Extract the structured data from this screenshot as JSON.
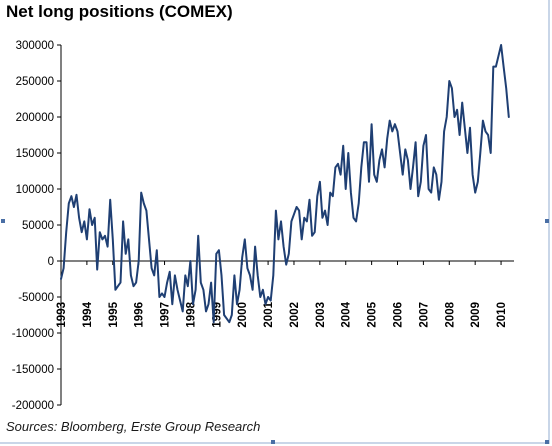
{
  "title": "Net long positions (COMEX)",
  "source": "Sources: Bloomberg, Erste Group Research",
  "colors": {
    "line": "#1f3f73",
    "axis": "#000000"
  },
  "chart_data": {
    "type": "line",
    "title": "Net long positions (COMEX)",
    "xlabel": "",
    "ylabel": "",
    "ylim": [
      -200000,
      300000
    ],
    "yticks": [
      -200000,
      -150000,
      -100000,
      -50000,
      0,
      50000,
      100000,
      150000,
      200000,
      250000,
      300000
    ],
    "ytick_labels": [
      "-200000",
      "-150000",
      "-100000",
      "-50000",
      "0",
      "50000",
      "100000",
      "150000",
      "200000",
      "250000",
      "300000"
    ],
    "xlim": [
      1993.0,
      2010.5
    ],
    "xtick_labels": [
      "1993",
      "1994",
      "1995",
      "1996",
      "1997",
      "1998",
      "1999",
      "2000",
      "2001",
      "2002",
      "2003",
      "2004",
      "2005",
      "2006",
      "2007",
      "2008",
      "2009",
      "2010"
    ],
    "grid": false,
    "legend": "none",
    "series": [
      {
        "x": [
          1993.0,
          1993.1,
          1993.2,
          1993.3,
          1993.4,
          1993.5,
          1993.6,
          1993.7,
          1993.8,
          1993.9,
          1994.0,
          1994.1,
          1994.2,
          1994.3,
          1994.4,
          1994.5,
          1994.6,
          1994.7,
          1994.8,
          1994.9,
          1995.0,
          1995.1,
          1995.2,
          1995.3,
          1995.4,
          1995.5,
          1995.6,
          1995.7,
          1995.8,
          1995.9,
          1996.0,
          1996.1,
          1996.2,
          1996.3,
          1996.4,
          1996.5,
          1996.6,
          1996.7,
          1996.8,
          1996.9,
          1997.0,
          1997.1,
          1997.2,
          1997.3,
          1997.4,
          1997.5,
          1997.6,
          1997.7,
          1997.8,
          1997.9,
          1998.0,
          1998.1,
          1998.2,
          1998.3,
          1998.4,
          1998.5,
          1998.6,
          1998.7,
          1998.8,
          1998.9,
          1999.0,
          1999.1,
          1999.2,
          1999.3,
          1999.4,
          1999.5,
          1999.6,
          1999.7,
          1999.8,
          1999.9,
          2000.0,
          2000.1,
          2000.2,
          2000.3,
          2000.4,
          2000.5,
          2000.6,
          2000.7,
          2000.8,
          2000.9,
          2001.0,
          2001.1,
          2001.2,
          2001.3,
          2001.4,
          2001.5,
          2001.6,
          2001.7,
          2001.8,
          2001.9,
          2002.0,
          2002.1,
          2002.2,
          2002.3,
          2002.4,
          2002.5,
          2002.6,
          2002.7,
          2002.8,
          2002.9,
          2003.0,
          2003.1,
          2003.2,
          2003.3,
          2003.4,
          2003.5,
          2003.6,
          2003.7,
          2003.8,
          2003.9,
          2004.0,
          2004.1,
          2004.2,
          2004.3,
          2004.4,
          2004.5,
          2004.6,
          2004.7,
          2004.8,
          2004.9,
          2005.0,
          2005.1,
          2005.2,
          2005.3,
          2005.4,
          2005.5,
          2005.6,
          2005.7,
          2005.8,
          2005.9,
          2006.0,
          2006.1,
          2006.2,
          2006.3,
          2006.4,
          2006.5,
          2006.6,
          2006.7,
          2006.8,
          2006.9,
          2007.0,
          2007.1,
          2007.2,
          2007.3,
          2007.4,
          2007.5,
          2007.6,
          2007.7,
          2007.8,
          2007.9,
          2008.0,
          2008.1,
          2008.2,
          2008.3,
          2008.4,
          2008.5,
          2008.6,
          2008.7,
          2008.8,
          2008.9,
          2009.0,
          2009.1,
          2009.2,
          2009.3,
          2009.4,
          2009.5,
          2009.6,
          2009.7,
          2009.8,
          2009.9,
          2010.0,
          2010.1,
          2010.2,
          2010.3
        ],
        "y": [
          -25000,
          -10000,
          40000,
          80000,
          90000,
          75000,
          92000,
          60000,
          40000,
          55000,
          30000,
          72000,
          50000,
          60000,
          -12000,
          40000,
          30000,
          35000,
          20000,
          85000,
          30000,
          -40000,
          -35000,
          -30000,
          55000,
          10000,
          30000,
          -20000,
          -35000,
          -30000,
          0,
          95000,
          80000,
          70000,
          30000,
          -10000,
          -20000,
          15000,
          -50000,
          -45000,
          -50000,
          -30000,
          -15000,
          -60000,
          -20000,
          -40000,
          -55000,
          -70000,
          -20000,
          -35000,
          0,
          -60000,
          -40000,
          35000,
          -30000,
          -40000,
          -70000,
          -60000,
          -30000,
          -85000,
          10000,
          15000,
          -20000,
          -75000,
          -80000,
          -85000,
          -75000,
          -20000,
          -60000,
          -40000,
          5000,
          30000,
          -10000,
          -20000,
          -40000,
          20000,
          -20000,
          -50000,
          -40000,
          -60000,
          -50000,
          -55000,
          -20000,
          70000,
          30000,
          55000,
          20000,
          -5000,
          10000,
          55000,
          65000,
          75000,
          70000,
          30000,
          60000,
          55000,
          85000,
          35000,
          40000,
          90000,
          110000,
          60000,
          70000,
          50000,
          95000,
          90000,
          130000,
          135000,
          120000,
          160000,
          100000,
          150000,
          95000,
          60000,
          55000,
          80000,
          130000,
          165000,
          165000,
          110000,
          190000,
          120000,
          110000,
          140000,
          155000,
          130000,
          170000,
          195000,
          180000,
          190000,
          180000,
          150000,
          120000,
          155000,
          140000,
          100000,
          130000,
          165000,
          90000,
          110000,
          160000,
          175000,
          100000,
          95000,
          130000,
          120000,
          85000,
          110000,
          180000,
          200000,
          250000,
          240000,
          200000,
          210000,
          175000,
          220000,
          185000,
          150000,
          185000,
          120000,
          95000,
          110000,
          150000,
          195000,
          180000,
          175000,
          150000,
          270000,
          270000,
          285000,
          300000,
          270000,
          240000,
          200000
        ]
      }
    ]
  }
}
